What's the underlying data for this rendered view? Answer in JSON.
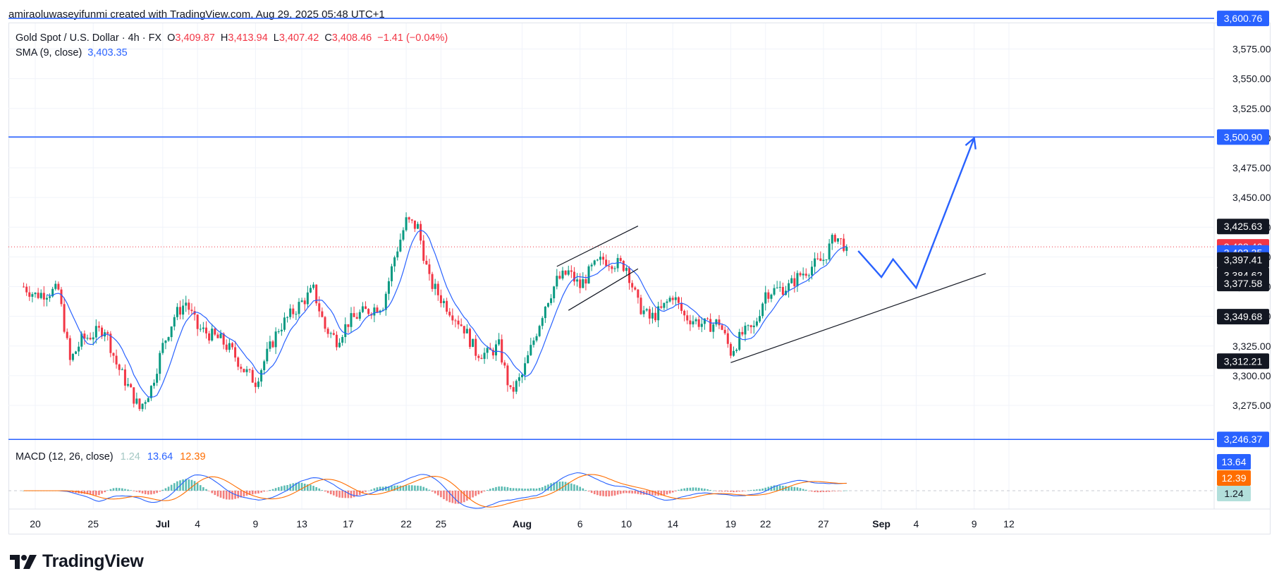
{
  "header": {
    "credit": "amiraoluwaseyifunmi created with TradingView.com, Aug 29, 2025 05:48 UTC+1"
  },
  "legend": {
    "symbol": "Gold Spot / U.S. Dollar · 4h · FX",
    "open_label": "O",
    "open": "3,409.87",
    "high_label": "H",
    "high": "3,413.94",
    "low_label": "L",
    "low": "3,407.42",
    "close_label": "C",
    "close": "3,408.46",
    "change": "−1.41 (−0.04%)",
    "sma_label": "SMA (9, close)",
    "sma_value": "3,403.35"
  },
  "macd_legend": {
    "label": "MACD (12, 26, close)",
    "hist": "1.24",
    "macd": "13.64",
    "signal": "12.39"
  },
  "footer": {
    "brand": "TradingView"
  },
  "colors": {
    "up": "#089981",
    "down": "#f23645",
    "sma": "#2962ff",
    "signal": "#ff6d00",
    "level": "#2962ff",
    "text": "#131722",
    "axis": "#787b86"
  },
  "chart_data": {
    "type": "candlestick",
    "symbol": "Gold Spot / U.S. Dollar",
    "timeframe": "4h",
    "y_ticks": [
      3275,
      3300,
      3325,
      3350,
      3375,
      3400,
      3425,
      3450,
      3475,
      3500,
      3525,
      3550,
      3575
    ],
    "y_tick_labels": [
      "3,275.00",
      "3,300.00",
      "3,325.00",
      "3,350.00",
      "3,375.00",
      "3,400.00",
      "3,425.00",
      "3,450.00",
      "3,475.00",
      "3,500.00",
      "3,525.00",
      "3,550.00",
      "3,575.00"
    ],
    "x_ticks": [
      {
        "label": "20",
        "date": "2025-06-20"
      },
      {
        "label": "25",
        "date": "2025-06-25"
      },
      {
        "label": "Jul",
        "date": "2025-07-01",
        "bold": true
      },
      {
        "label": "4",
        "date": "2025-07-04"
      },
      {
        "label": "9",
        "date": "2025-07-09"
      },
      {
        "label": "13",
        "date": "2025-07-13"
      },
      {
        "label": "17",
        "date": "2025-07-17"
      },
      {
        "label": "22",
        "date": "2025-07-22"
      },
      {
        "label": "25",
        "date": "2025-07-25"
      },
      {
        "label": "Aug",
        "date": "2025-08-01",
        "bold": true
      },
      {
        "label": "6",
        "date": "2025-08-06"
      },
      {
        "label": "10",
        "date": "2025-08-10"
      },
      {
        "label": "14",
        "date": "2025-08-14"
      },
      {
        "label": "19",
        "date": "2025-08-19"
      },
      {
        "label": "22",
        "date": "2025-08-22"
      },
      {
        "label": "27",
        "date": "2025-08-27"
      },
      {
        "label": "Sep",
        "date": "2025-09-01",
        "bold": true
      },
      {
        "label": "4",
        "date": "2025-09-04"
      },
      {
        "label": "9",
        "date": "2025-09-09"
      },
      {
        "label": "12",
        "date": "2025-09-12"
      }
    ],
    "price_path": [
      [
        "2025-06-19",
        3375
      ],
      [
        "2025-06-20",
        3368
      ],
      [
        "2025-06-22",
        3372
      ],
      [
        "2025-06-23",
        3312
      ],
      [
        "2025-06-24",
        3330
      ],
      [
        "2025-06-25",
        3335
      ],
      [
        "2025-06-26",
        3340
      ],
      [
        "2025-06-27",
        3310
      ],
      [
        "2025-06-29",
        3272
      ],
      [
        "2025-06-30",
        3290
      ],
      [
        "2025-07-01",
        3325
      ],
      [
        "2025-07-02",
        3350
      ],
      [
        "2025-07-03",
        3362
      ],
      [
        "2025-07-04",
        3340
      ],
      [
        "2025-07-06",
        3330
      ],
      [
        "2025-07-07",
        3320
      ],
      [
        "2025-07-08",
        3305
      ],
      [
        "2025-07-09",
        3295
      ],
      [
        "2025-07-10",
        3318
      ],
      [
        "2025-07-11",
        3340
      ],
      [
        "2025-07-13",
        3362
      ],
      [
        "2025-07-14",
        3372
      ],
      [
        "2025-07-15",
        3340
      ],
      [
        "2025-07-16",
        3330
      ],
      [
        "2025-07-17",
        3345
      ],
      [
        "2025-07-18",
        3352
      ],
      [
        "2025-07-20",
        3360
      ],
      [
        "2025-07-21",
        3400
      ],
      [
        "2025-07-22",
        3430
      ],
      [
        "2025-07-23",
        3425
      ],
      [
        "2025-07-24",
        3380
      ],
      [
        "2025-07-25",
        3365
      ],
      [
        "2025-07-27",
        3340
      ],
      [
        "2025-07-28",
        3320
      ],
      [
        "2025-07-29",
        3318
      ],
      [
        "2025-07-30",
        3325
      ],
      [
        "2025-07-31",
        3285
      ],
      [
        "2025-08-01",
        3300
      ],
      [
        "2025-08-03",
        3360
      ],
      [
        "2025-08-04",
        3380
      ],
      [
        "2025-08-05",
        3387
      ],
      [
        "2025-08-06",
        3375
      ],
      [
        "2025-08-07",
        3390
      ],
      [
        "2025-08-08",
        3398
      ],
      [
        "2025-08-10",
        3392
      ],
      [
        "2025-08-11",
        3360
      ],
      [
        "2025-08-12",
        3348
      ],
      [
        "2025-08-13",
        3355
      ],
      [
        "2025-08-14",
        3368
      ],
      [
        "2025-08-15",
        3350
      ],
      [
        "2025-08-17",
        3342
      ],
      [
        "2025-08-18",
        3345
      ],
      [
        "2025-08-19",
        3320
      ],
      [
        "2025-08-20",
        3335
      ],
      [
        "2025-08-21",
        3340
      ],
      [
        "2025-08-22",
        3370
      ],
      [
        "2025-08-24",
        3375
      ],
      [
        "2025-08-25",
        3385
      ],
      [
        "2025-08-26",
        3392
      ],
      [
        "2025-08-27",
        3398
      ],
      [
        "2025-08-28",
        3418
      ],
      [
        "2025-08-29",
        3408
      ]
    ],
    "sma_period": 9,
    "channel_lines": [
      {
        "from": [
          "2025-08-04",
          3392
        ],
        "to": [
          "2025-08-11",
          3426
        ]
      },
      {
        "from": [
          "2025-08-05",
          3355
        ],
        "to": [
          "2025-08-11",
          3390
        ]
      }
    ],
    "trend_line": {
      "from": [
        "2025-08-19",
        3311
      ],
      "to": [
        "2025-09-10",
        3386
      ]
    },
    "projection_path": [
      [
        "2025-08-30",
        3405
      ],
      [
        "2025-09-01",
        3383
      ],
      [
        "2025-09-02",
        3398
      ],
      [
        "2025-09-04",
        3374
      ],
      [
        "2025-09-09",
        3500
      ]
    ],
    "levels": [
      3600.76,
      3500.9,
      3246.37
    ],
    "current_price_line": 3408.46,
    "price_axis_labels": [
      {
        "value": 3600.76,
        "text": "3,600.76",
        "bg": "#2962ff"
      },
      {
        "value": 3500.9,
        "text": "3,500.90",
        "bg": "#2962ff"
      },
      {
        "value": 3425.63,
        "text": "3,425.63",
        "bg": "#131722"
      },
      {
        "value": 3408.46,
        "text": "3,408.46",
        "bg": "#f23645"
      },
      {
        "value": 3403.35,
        "text": "3,403.35",
        "bg": "#2962ff"
      },
      {
        "value": 3397.41,
        "text": "3,397.41",
        "bg": "#131722"
      },
      {
        "value": 3384.62,
        "text": "3,384.62",
        "bg": "#131722"
      },
      {
        "value": 3377.58,
        "text": "3,377.58",
        "bg": "#131722"
      },
      {
        "value": 3349.68,
        "text": "3,349.68",
        "bg": "#131722"
      },
      {
        "value": 3312.21,
        "text": "3,312.21",
        "bg": "#131722"
      },
      {
        "value": 3246.37,
        "text": "3,246.37",
        "bg": "#2962ff"
      }
    ],
    "macd_axis_labels": [
      {
        "text": "13.64",
        "bg": "#2962ff"
      },
      {
        "text": "12.39",
        "bg": "#ff6d00"
      },
      {
        "text": "1.24",
        "bg": "#b2dfdb"
      }
    ]
  }
}
